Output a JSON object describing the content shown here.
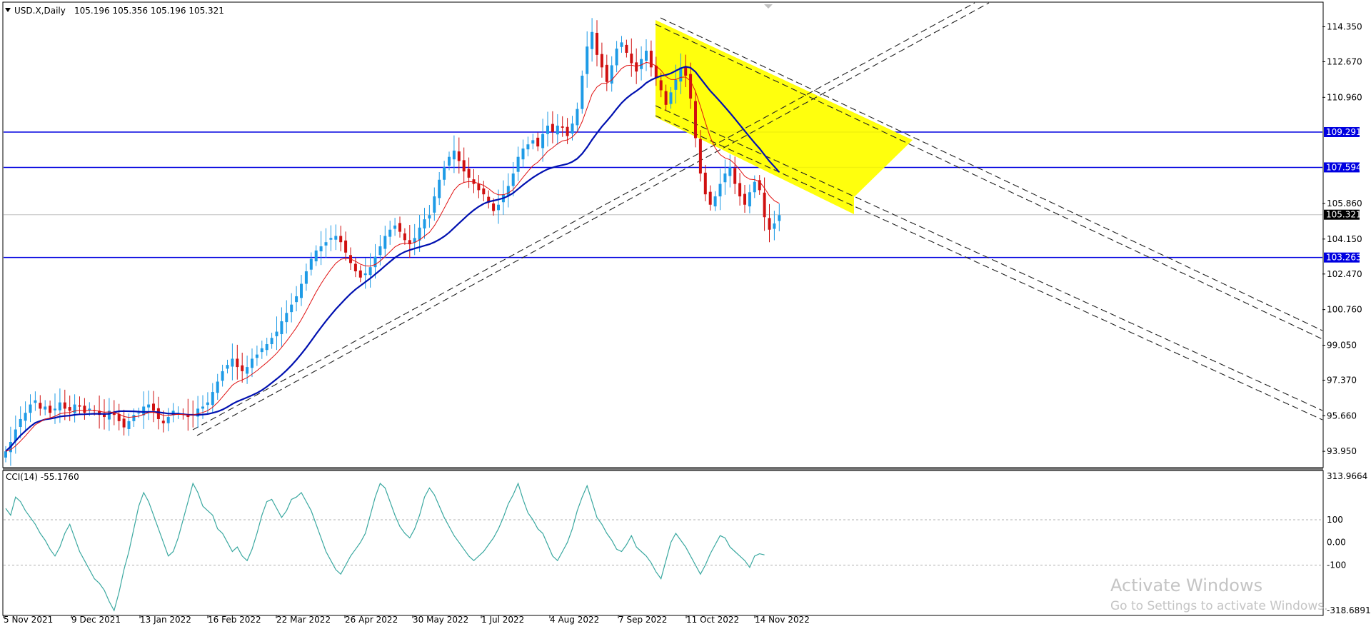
{
  "chart_data": {
    "type": "candlestick",
    "header": {
      "symbol_label": "USD.X,Daily",
      "ohlc": "105.196 105.356 105.196 105.321"
    },
    "price_axis": {
      "ticks": [
        "114.350",
        "112.670",
        "110.960",
        "109.291",
        "107.594",
        "105.860",
        "105.321",
        "104.150",
        "103.263",
        "102.470",
        "100.760",
        "99.050",
        "97.370",
        "95.660",
        "93.950"
      ],
      "range": [
        93.2,
        115.5
      ]
    },
    "time_axis": {
      "labels": [
        "5 Nov 2021",
        "9 Dec 2021",
        "13 Jan 2022",
        "16 Feb 2022",
        "22 Mar 2022",
        "26 Apr 2022",
        "30 May 2022",
        "1 Jul 2022",
        "4 Aug 2022",
        "7 Sep 2022",
        "11 Oct 2022",
        "14 Nov 2022"
      ]
    },
    "levels": [
      {
        "value": 109.291,
        "label": "109.291",
        "color": "#0000e0"
      },
      {
        "value": 107.594,
        "label": "107.594",
        "color": "#0000e0"
      },
      {
        "value": 103.263,
        "label": "103.263",
        "color": "#0000e0"
      }
    ],
    "current_price": {
      "value": 105.321,
      "label": "105.321"
    },
    "close_series": [
      93.95,
      94.4,
      95.0,
      95.5,
      95.8,
      96.2,
      96.4,
      96.0,
      96.1,
      95.8,
      96.0,
      96.3,
      96.0,
      95.9,
      96.2,
      96.1,
      95.8,
      96.0,
      95.9,
      95.7,
      95.6,
      95.9,
      95.7,
      95.4,
      95.1,
      95.4,
      95.7,
      95.8,
      96.1,
      96.2,
      95.9,
      95.5,
      95.3,
      95.6,
      95.9,
      95.8,
      95.7,
      95.6,
      95.7,
      96.0,
      96.1,
      96.3,
      96.8,
      97.3,
      97.8,
      98.1,
      98.4,
      98.0,
      97.8,
      98.0,
      98.4,
      98.6,
      98.9,
      99.1,
      99.4,
      99.7,
      100.2,
      100.6,
      101.0,
      101.4,
      102.0,
      102.6,
      103.2,
      103.6,
      103.8,
      104.0,
      104.2,
      104.3,
      104.0,
      103.5,
      103.0,
      102.6,
      102.3,
      102.5,
      102.8,
      103.3,
      103.8,
      104.3,
      104.6,
      104.8,
      104.5,
      104.1,
      103.9,
      104.2,
      104.7,
      105.1,
      105.3,
      106.2,
      107.0,
      107.6,
      108.1,
      108.4,
      107.9,
      107.4,
      107.1,
      106.8,
      106.5,
      106.3,
      105.9,
      105.5,
      105.8,
      106.3,
      106.7,
      107.3,
      108.1,
      108.5,
      108.7,
      108.9,
      108.6,
      109.2,
      109.6,
      109.3,
      109.6,
      109.5,
      109.1,
      109.7,
      110.4,
      112.0,
      113.4,
      114.1,
      113.0,
      112.4,
      111.7,
      112.5,
      113.3,
      113.6,
      113.1,
      112.6,
      112.2,
      112.8,
      113.2,
      112.4,
      111.9,
      111.3,
      110.6,
      111.2,
      111.8,
      112.4,
      112.0,
      110.9,
      109.0,
      107.3,
      106.3,
      105.8,
      106.2,
      106.8,
      107.3,
      107.6,
      106.8,
      106.2,
      105.8,
      106.4,
      106.9,
      106.5,
      105.2,
      104.6,
      104.9,
      105.3
    ],
    "cci": {
      "label": "CCI(14) -55.1760",
      "range_labels": [
        "313.9664",
        "100",
        "0.00",
        "-100",
        "-318.6891"
      ],
      "range": [
        -318.6891,
        313.9664
      ],
      "values": [
        150,
        120,
        200,
        180,
        140,
        110,
        80,
        40,
        10,
        -30,
        -60,
        -20,
        40,
        80,
        20,
        -40,
        -80,
        -120,
        -160,
        -180,
        -210,
        -260,
        -300,
        -220,
        -120,
        -40,
        60,
        160,
        220,
        180,
        120,
        60,
        0,
        -60,
        -40,
        20,
        100,
        180,
        260,
        220,
        160,
        140,
        120,
        60,
        40,
        0,
        -40,
        -20,
        -60,
        -80,
        -30,
        40,
        120,
        180,
        190,
        150,
        110,
        140,
        190,
        200,
        220,
        180,
        140,
        80,
        20,
        -40,
        -80,
        -120,
        -140,
        -100,
        -60,
        -30,
        0,
        40,
        120,
        200,
        260,
        240,
        180,
        120,
        70,
        40,
        20,
        60,
        120,
        200,
        240,
        210,
        160,
        110,
        70,
        30,
        0,
        -30,
        -60,
        -80,
        -60,
        -40,
        -10,
        20,
        60,
        110,
        170,
        210,
        260,
        190,
        130,
        100,
        60,
        40,
        -10,
        -60,
        -80,
        -40,
        0,
        60,
        140,
        200,
        250,
        180,
        110,
        80,
        40,
        10,
        -30,
        -40,
        -10,
        30,
        -20,
        -40,
        -60,
        -90,
        -130,
        -160,
        -80,
        0,
        40,
        10,
        -20,
        -60,
        -100,
        -140,
        -100,
        -50,
        -10,
        30,
        20,
        -20,
        -40,
        -60,
        -80,
        -110,
        -60,
        -50,
        -55
      ]
    },
    "colors": {
      "bull": "#1e9be6",
      "bear": "#d01010",
      "ma_fast": "#e01010",
      "ma_slow": "#0010b0",
      "level": "#0000e0",
      "channel_fill": "#ffff00",
      "cci_line": "#3aa8a0",
      "trendline": "#202020"
    },
    "watermark": {
      "line1": "Activate Windows",
      "line2": "Go to Settings to activate Windows."
    }
  }
}
